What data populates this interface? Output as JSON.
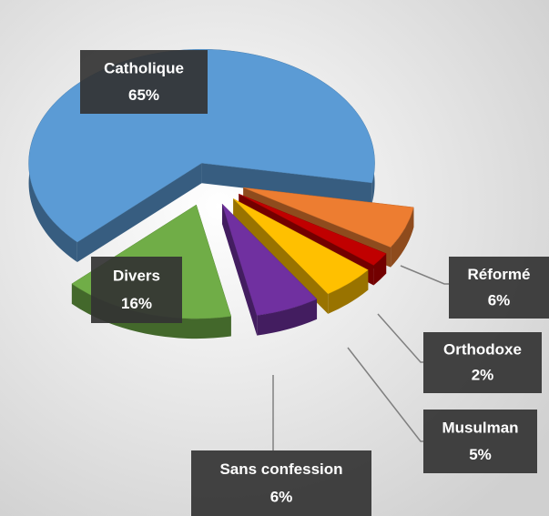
{
  "chart_data": {
    "type": "pie",
    "categories": [
      "Catholique",
      "Réformé",
      "Orthodoxe",
      "Musulman",
      "Sans confession",
      "Divers"
    ],
    "values": [
      65,
      6,
      2,
      5,
      6,
      16
    ],
    "value_labels": [
      "65%",
      "6%",
      "2%",
      "5%",
      "6%",
      "16%"
    ],
    "colors": [
      "#5b9bd5",
      "#ed7d31",
      "#c00000",
      "#ffc000",
      "#7030a0",
      "#70ad47"
    ]
  }
}
